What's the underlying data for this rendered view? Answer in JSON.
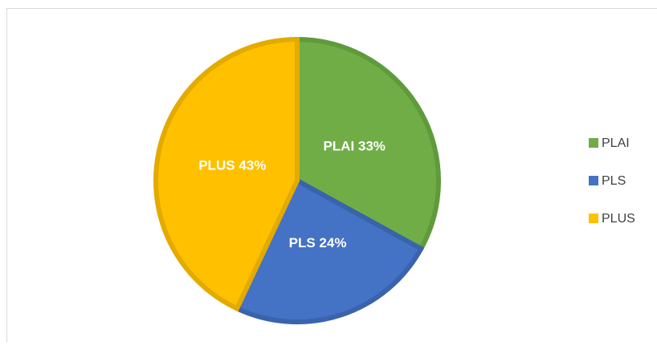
{
  "chart_data": {
    "type": "pie",
    "categories": [
      "PLAI",
      "PLS",
      "PLUS"
    ],
    "values": [
      33,
      24,
      43
    ],
    "value_labels": [
      "PLAI 33%",
      "PLS 24%",
      "PLUS 43%"
    ],
    "colors": [
      "#70ad47",
      "#4472c4",
      "#ffc000"
    ],
    "borders": [
      "#5f9a3b",
      "#3a63ad",
      "#e3aa00"
    ],
    "legend": "right"
  }
}
